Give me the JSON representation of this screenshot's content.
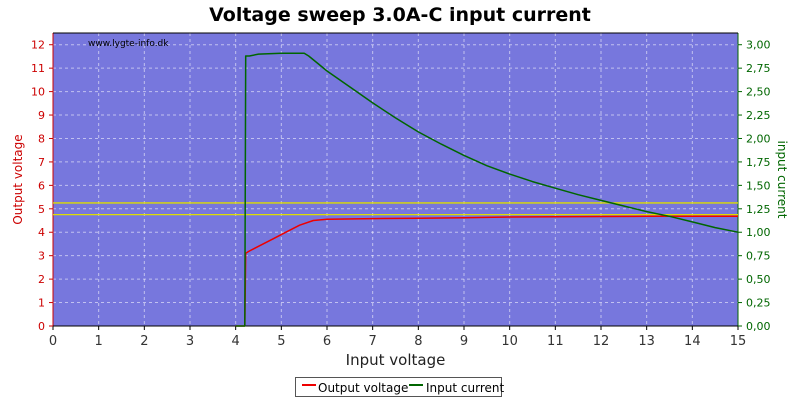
{
  "chart_data": {
    "type": "line",
    "title": "Voltage sweep 3.0A-C input current",
    "watermark": "www.lygte-info.dk",
    "xlabel": "Input voltage",
    "ylabel_left": "Output voltage",
    "ylabel_right": "input current",
    "xlim": [
      0,
      15
    ],
    "ylim_left": [
      0,
      12.5
    ],
    "ylim_right": [
      0,
      3.125
    ],
    "x_ticks": [
      0,
      1,
      2,
      3,
      4,
      5,
      6,
      7,
      8,
      9,
      10,
      11,
      12,
      13,
      14,
      15
    ],
    "x_tick_labels": [
      "0",
      "1",
      "2",
      "3",
      "4",
      "5",
      "6",
      "7",
      "8",
      "9",
      "10",
      "11",
      "12",
      "13",
      "14",
      "15"
    ],
    "y_left_ticks": [
      0,
      1,
      2,
      3,
      4,
      5,
      6,
      7,
      8,
      9,
      10,
      11,
      12
    ],
    "y_left_tick_labels": [
      "0",
      "1",
      "2",
      "3",
      "4",
      "5",
      "6",
      "7",
      "8",
      "9",
      "10",
      "11",
      "12"
    ],
    "y_right_ticks": [
      0,
      0.25,
      0.5,
      0.75,
      1.0,
      1.25,
      1.5,
      1.75,
      2.0,
      2.25,
      2.5,
      2.75,
      3.0
    ],
    "y_right_tick_labels": [
      "0,00",
      "0,25",
      "0,50",
      "0,75",
      "1,00",
      "1,25",
      "1,50",
      "1,75",
      "2,00",
      "2,25",
      "2,50",
      "2,75",
      "3,00"
    ],
    "grid": true,
    "legend_position": "bottom-center",
    "colors": {
      "plot_background": "#7777dd",
      "output_voltage": "#ee0000",
      "input_current": "#006600",
      "reference_lines": "#dddd00",
      "left_axis_text": "#cc0000",
      "right_axis_text": "#006600"
    },
    "reference_lines_left": [
      5.25,
      4.75
    ],
    "series": [
      {
        "name": "Output voltage",
        "axis": "left",
        "x": [
          4.0,
          4.2,
          4.22,
          4.3,
          4.5,
          4.8,
          5.1,
          5.4,
          5.7,
          6.0,
          7.0,
          8.0,
          9.0,
          10.0,
          11.0,
          12.0,
          13.0,
          14.0,
          15.0
        ],
        "y": [
          0,
          0,
          3.1,
          3.2,
          3.4,
          3.7,
          4.0,
          4.3,
          4.5,
          4.55,
          4.58,
          4.6,
          4.62,
          4.65,
          4.66,
          4.67,
          4.68,
          4.68,
          4.68
        ]
      },
      {
        "name": "Input current",
        "axis": "right",
        "x": [
          4.0,
          4.2,
          4.22,
          4.3,
          4.5,
          5.0,
          5.5,
          5.6,
          5.8,
          6.0,
          6.5,
          7.0,
          7.5,
          8.0,
          8.5,
          9.0,
          9.5,
          10.0,
          10.5,
          11.0,
          11.5,
          12.0,
          12.5,
          13.0,
          13.5,
          14.0,
          14.5,
          15.0
        ],
        "y": [
          0,
          0,
          2.88,
          2.88,
          2.9,
          2.91,
          2.91,
          2.88,
          2.8,
          2.72,
          2.55,
          2.38,
          2.22,
          2.07,
          1.94,
          1.82,
          1.71,
          1.62,
          1.54,
          1.47,
          1.4,
          1.34,
          1.28,
          1.22,
          1.17,
          1.11,
          1.05,
          1.0
        ]
      }
    ]
  }
}
